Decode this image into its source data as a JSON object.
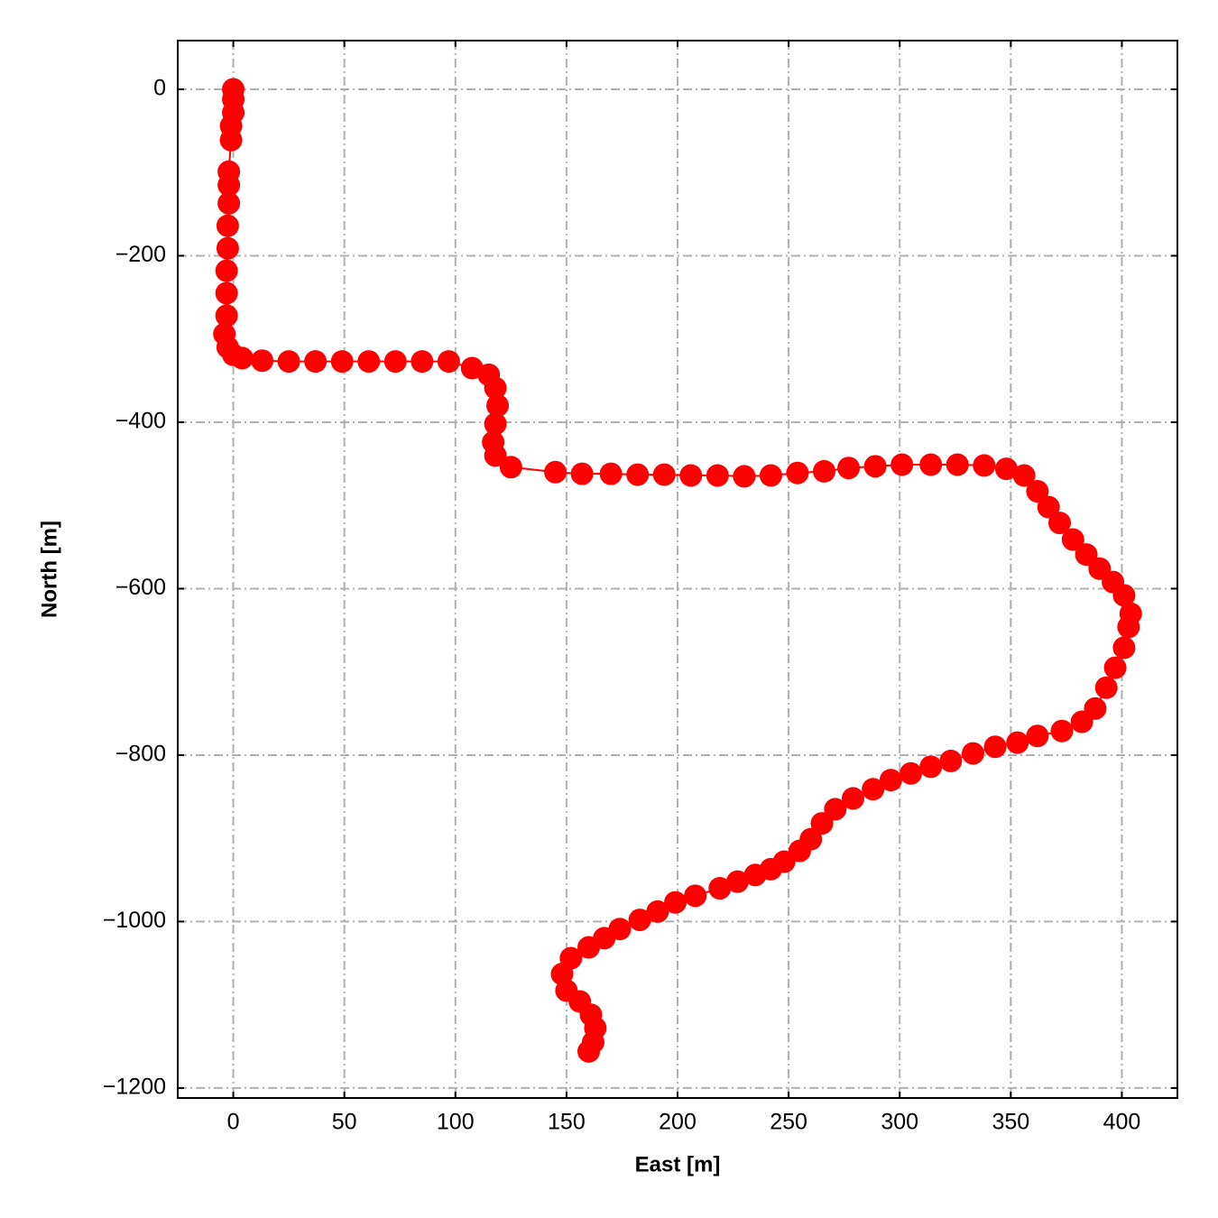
{
  "chart_data": {
    "type": "line",
    "xlabel": "East [m]",
    "ylabel": "North [m]",
    "color": "#ff0000",
    "grid": true,
    "xlim": [
      -25,
      425
    ],
    "ylim": [
      -1212,
      58.5
    ],
    "xticks": [
      0,
      50,
      100,
      150,
      200,
      250,
      300,
      350,
      400
    ],
    "yticks": [
      0,
      {
        "value": -200,
        "label": "−200"
      },
      {
        "value": -400,
        "label": "−400"
      },
      {
        "value": -600,
        "label": "−600"
      },
      {
        "value": -800,
        "label": "−800"
      },
      {
        "value": -1000,
        "label": "−1000"
      },
      {
        "value": -1200,
        "label": "−1200"
      }
    ],
    "x": [
      0,
      0,
      0,
      -1,
      -1,
      -2,
      -2,
      -2,
      -2.5,
      -2.5,
      -3,
      -3,
      -3,
      -4,
      -2.5,
      0,
      4,
      13,
      25,
      37,
      49,
      61,
      73,
      85,
      97,
      107.5,
      115,
      118,
      119,
      118,
      117,
      118,
      125,
      145,
      157,
      170,
      182,
      194,
      206,
      218,
      230,
      242,
      254,
      266,
      277,
      289,
      301,
      314,
      326,
      338,
      348,
      356,
      362,
      367,
      372,
      378,
      384,
      390,
      396,
      401,
      404,
      403,
      401,
      397,
      393,
      388,
      382,
      373,
      362,
      353,
      343,
      333,
      323,
      314,
      305,
      296,
      288,
      279,
      271,
      265,
      260,
      255,
      248,
      242,
      235,
      227,
      219,
      208,
      199,
      191,
      183,
      174,
      167,
      160,
      152,
      148,
      150,
      156,
      161,
      163,
      162,
      160
    ],
    "values": [
      0,
      -12,
      -28,
      -44,
      -61,
      -99,
      -115,
      -137,
      -164,
      -191,
      -218,
      -245,
      -272,
      -294,
      -310,
      -319,
      -323,
      -326,
      -327,
      -327,
      -327,
      -327,
      -327,
      -327,
      -327,
      -335,
      -343,
      -359,
      -380,
      -402,
      -424,
      -440,
      -454,
      -460,
      -462,
      -462,
      -463,
      -463,
      -464,
      -464,
      -465,
      -464,
      -461,
      -459,
      -455,
      -453,
      -451,
      -451,
      -451,
      -452,
      -456,
      -464,
      -483,
      -502,
      -521,
      -541,
      -559,
      -576,
      -592,
      -608,
      -630,
      -646,
      -671,
      -695,
      -719,
      -744,
      -760,
      -771,
      -777,
      -785,
      -790,
      -798,
      -807,
      -814,
      -822,
      -830,
      -841,
      -852,
      -865,
      -882,
      -901,
      -915,
      -928,
      -937,
      -944,
      -952,
      -960,
      -969,
      -977,
      -988,
      -998,
      -1009,
      -1020,
      -1031,
      -1044,
      -1063,
      -1083,
      -1096,
      -1112,
      -1128,
      -1145,
      -1156
    ]
  }
}
